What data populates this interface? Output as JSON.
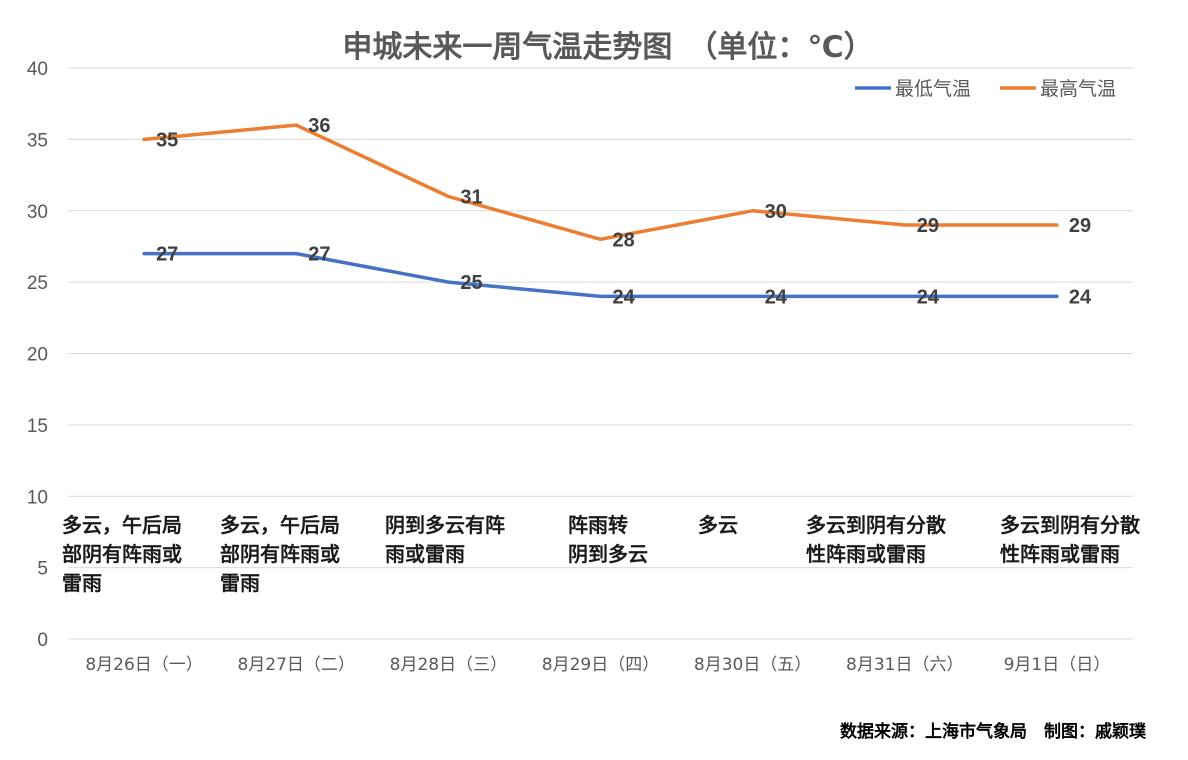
{
  "chart_data": {
    "type": "line",
    "title": "申城未来一周气温走势图　（单位：℃）",
    "categories": [
      "8月26日（一）",
      "8月27日（二）",
      "8月28日（三）",
      "8月29日（四）",
      "8月30日（五）",
      "8月31日（六）",
      "9月1日（日）"
    ],
    "series": [
      {
        "name": "最低气温",
        "color": "#4472c4",
        "values": [
          27,
          27,
          25,
          24,
          24,
          24,
          24
        ]
      },
      {
        "name": "最高气温",
        "color": "#ed7d31",
        "values": [
          35,
          36,
          31,
          28,
          30,
          29,
          29
        ]
      }
    ],
    "yticks": [
      "0",
      "5",
      "10",
      "15",
      "20",
      "25",
      "30",
      "35",
      "40"
    ],
    "ylim": [
      0,
      40
    ],
    "grid": true,
    "legend": "top-right",
    "weather": [
      [
        "多云，午后局",
        "部阴有阵雨或",
        "雷雨"
      ],
      [
        "多云，午后局",
        "部阴有阵雨或",
        "雷雨"
      ],
      [
        "阴到多云有阵",
        "雨或雷雨"
      ],
      [
        "阵雨转",
        "阴到多云"
      ],
      [
        "多云"
      ],
      [
        "多云到阴有分散",
        "性阵雨或雷雨"
      ],
      [
        "多云到阴有分散",
        "性阵雨或雷雨"
      ]
    ],
    "source": "数据来源：上海市气象局　制图：戚颖璞"
  }
}
